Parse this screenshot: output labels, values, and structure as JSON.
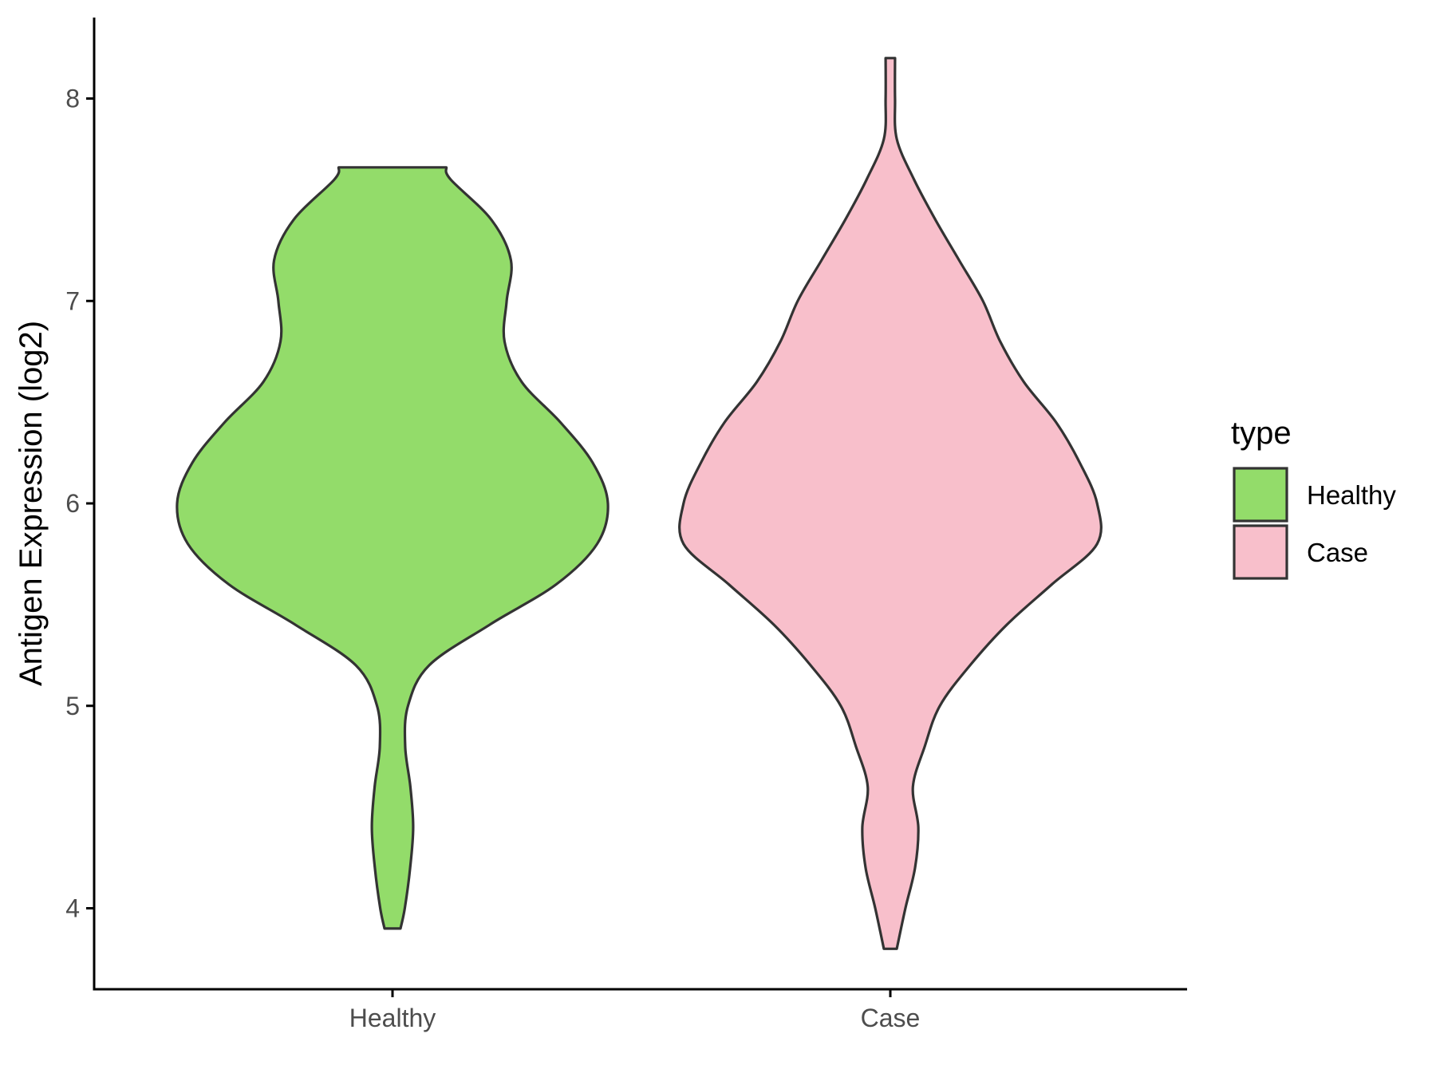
{
  "chart_data": {
    "type": "violin",
    "ylabel": "Antigen Expression (log2)",
    "xlabel": "",
    "ylim": [
      3.6,
      8.4
    ],
    "yticks": [
      4,
      5,
      6,
      7,
      8
    ],
    "categories": [
      "Healthy",
      "Case"
    ],
    "grid": false,
    "legend": {
      "title": "type",
      "position": "right",
      "entries": [
        "Healthy",
        "Case"
      ]
    },
    "series": [
      {
        "name": "Healthy",
        "color": "#93dc6a",
        "min": 3.9,
        "max": 7.66,
        "density_profile": [
          [
            3.9,
            0.037
          ],
          [
            4.0,
            0.057
          ],
          [
            4.2,
            0.082
          ],
          [
            4.4,
            0.096
          ],
          [
            4.6,
            0.083
          ],
          [
            4.8,
            0.059
          ],
          [
            5.0,
            0.072
          ],
          [
            5.2,
            0.17
          ],
          [
            5.4,
            0.45
          ],
          [
            5.6,
            0.76
          ],
          [
            5.8,
            0.95
          ],
          [
            6.0,
            1.0
          ],
          [
            6.2,
            0.93
          ],
          [
            6.4,
            0.78
          ],
          [
            6.6,
            0.6
          ],
          [
            6.8,
            0.52
          ],
          [
            7.0,
            0.53
          ],
          [
            7.2,
            0.55
          ],
          [
            7.4,
            0.46
          ],
          [
            7.6,
            0.27
          ],
          [
            7.66,
            0.25
          ]
        ]
      },
      {
        "name": "Case",
        "color": "#f8bfcb",
        "min": 3.8,
        "max": 8.2,
        "density_profile": [
          [
            3.8,
            0.03
          ],
          [
            4.0,
            0.07
          ],
          [
            4.2,
            0.115
          ],
          [
            4.4,
            0.13
          ],
          [
            4.6,
            0.105
          ],
          [
            4.8,
            0.16
          ],
          [
            5.0,
            0.23
          ],
          [
            5.2,
            0.37
          ],
          [
            5.4,
            0.54
          ],
          [
            5.6,
            0.75
          ],
          [
            5.8,
            0.96
          ],
          [
            6.0,
            0.96
          ],
          [
            6.2,
            0.88
          ],
          [
            6.4,
            0.77
          ],
          [
            6.6,
            0.62
          ],
          [
            6.8,
            0.51
          ],
          [
            7.0,
            0.43
          ],
          [
            7.2,
            0.32
          ],
          [
            7.4,
            0.21
          ],
          [
            7.6,
            0.11
          ],
          [
            7.8,
            0.03
          ],
          [
            8.0,
            0.022
          ],
          [
            8.2,
            0.022
          ]
        ]
      }
    ]
  }
}
